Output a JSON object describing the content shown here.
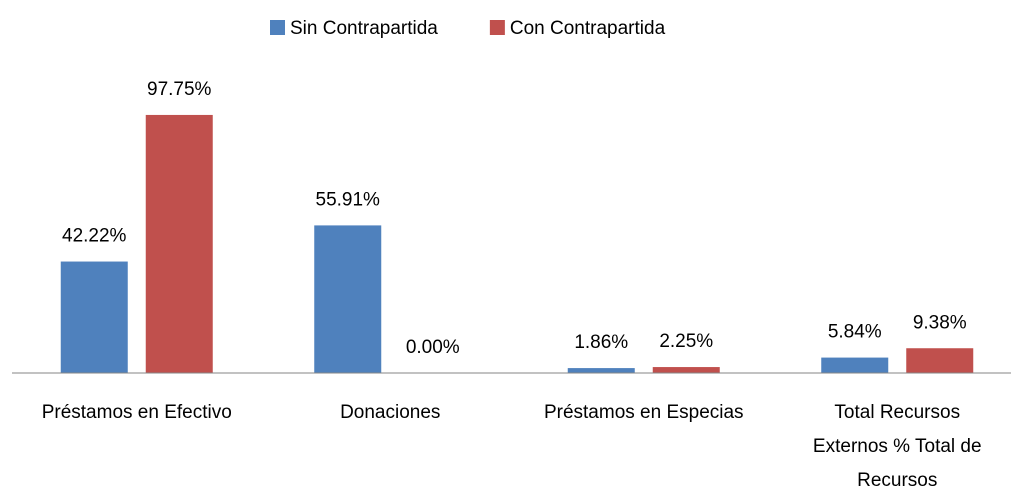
{
  "chart_data": {
    "type": "bar",
    "categories": [
      "Préstamos en Efectivo",
      "Donaciones",
      "Préstamos en Especias",
      "Total Recursos Externos % Total de Recursos"
    ],
    "series": [
      {
        "name": "Sin Contrapartida",
        "color": "#4f81bd",
        "values": [
          42.22,
          55.91,
          1.86,
          5.84
        ],
        "value_labels": [
          "42.22%",
          "55.91%",
          "1.86%",
          "5.84%"
        ]
      },
      {
        "name": "Con Contrapartida",
        "color": "#c0504d",
        "values": [
          97.75,
          0,
          2.25,
          9.38
        ],
        "value_labels": [
          "97.75%",
          "0.00%",
          "2.25%",
          "9.38%"
        ]
      }
    ],
    "ylim": [
      0,
      100
    ],
    "legend": "top"
  }
}
